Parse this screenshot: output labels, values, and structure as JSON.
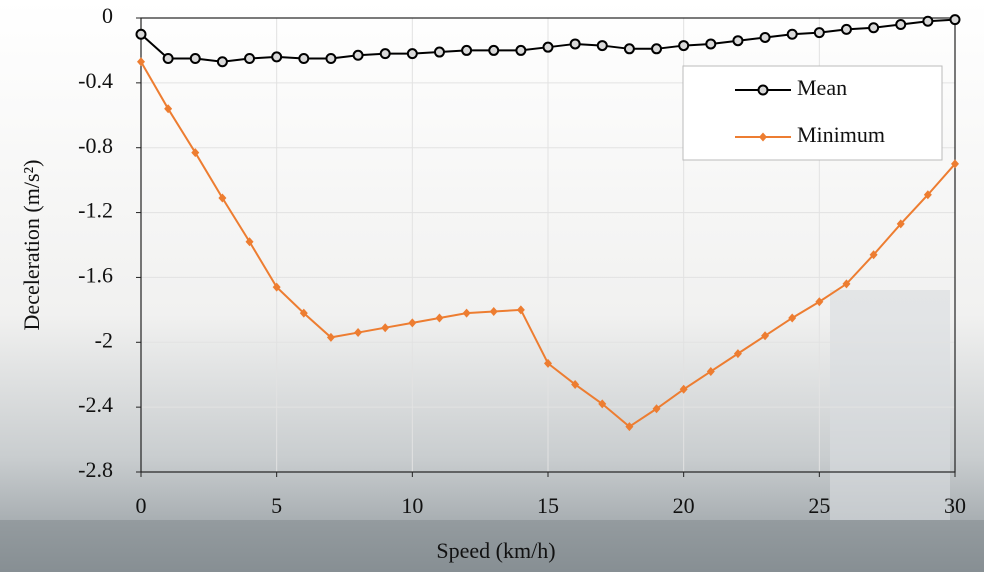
{
  "chart_data": {
    "type": "line",
    "xlabel": "Speed (km/h)",
    "ylabel": "Deceleration (m/s²)",
    "x": [
      0,
      1,
      2,
      3,
      4,
      5,
      6,
      7,
      8,
      9,
      10,
      11,
      12,
      13,
      14,
      15,
      16,
      17,
      18,
      19,
      20,
      21,
      22,
      23,
      24,
      25,
      26,
      27,
      28,
      29,
      30
    ],
    "series": [
      {
        "name": "Mean",
        "color": "#000000",
        "marker": "circle",
        "values": [
          -0.1,
          -0.25,
          -0.25,
          -0.27,
          -0.25,
          -0.24,
          -0.25,
          -0.25,
          -0.23,
          -0.22,
          -0.22,
          -0.21,
          -0.2,
          -0.2,
          -0.2,
          -0.18,
          -0.16,
          -0.17,
          -0.19,
          -0.19,
          -0.17,
          -0.16,
          -0.14,
          -0.12,
          -0.1,
          -0.09,
          -0.07,
          -0.06,
          -0.04,
          -0.02,
          -0.01
        ]
      },
      {
        "name": "Minimum",
        "color": "#ed7d31",
        "marker": "diamond",
        "values": [
          -0.27,
          -0.56,
          -0.83,
          -1.11,
          -1.38,
          -1.66,
          -1.82,
          -1.97,
          -1.94,
          -1.91,
          -1.88,
          -1.85,
          -1.82,
          -1.81,
          -1.8,
          -2.13,
          -2.26,
          -2.38,
          -2.52,
          -2.41,
          -2.29,
          -2.18,
          -2.07,
          -1.96,
          -1.85,
          -1.75,
          -1.64,
          -1.46,
          -1.27,
          -1.09,
          -0.9
        ]
      }
    ],
    "xlim": [
      0,
      30
    ],
    "xticks": [
      0,
      5,
      10,
      15,
      20,
      25,
      30
    ],
    "ylim": [
      -2.8,
      0
    ],
    "yticks": [
      0,
      -0.4,
      -0.8,
      -1.2,
      -1.6,
      -2,
      -2.4,
      -2.8
    ],
    "grid": true,
    "legend": "upper right"
  }
}
